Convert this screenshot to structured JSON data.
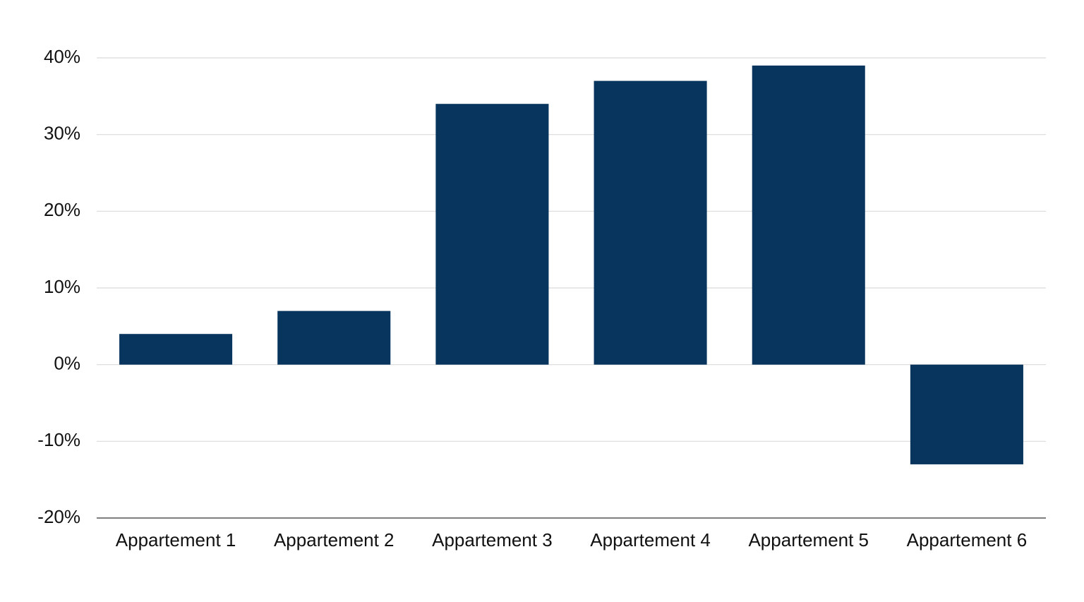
{
  "chart_data": {
    "type": "bar",
    "categories": [
      "Appartement 1",
      "Appartement 2",
      "Appartement 3",
      "Appartement 4",
      "Appartement 5",
      "Appartement 6"
    ],
    "values": [
      4,
      7,
      34,
      37,
      39,
      -13
    ],
    "color": "#08355d",
    "ylim": [
      -20,
      40
    ],
    "yticks": [
      {
        "value": -20,
        "label": "-20%"
      },
      {
        "value": -10,
        "label": "-10%"
      },
      {
        "value": 0,
        "label": "0%"
      },
      {
        "value": 10,
        "label": "10%"
      },
      {
        "value": 20,
        "label": "20%"
      },
      {
        "value": 30,
        "label": "30%"
      },
      {
        "value": 40,
        "label": "40%"
      }
    ],
    "grid": true
  }
}
